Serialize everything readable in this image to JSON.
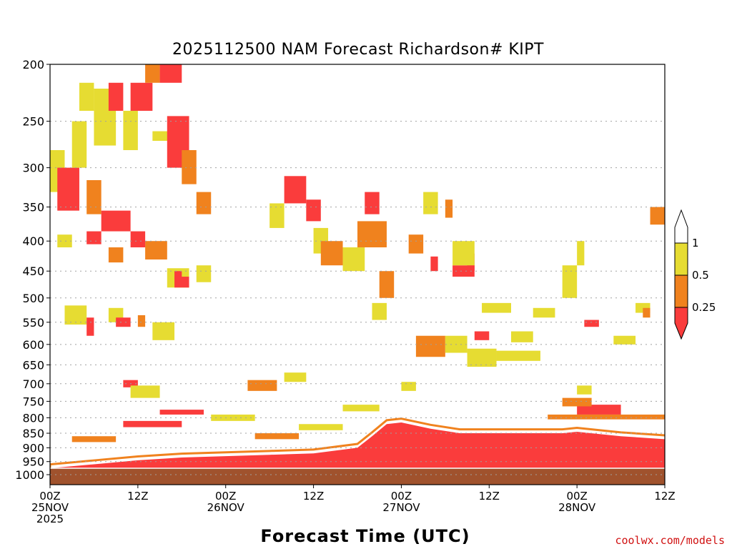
{
  "colors": {
    "ri_lt_025": "#fa3c3c",
    "ri_025_05": "#f0821e",
    "ri_05_1": "#e6dc32",
    "ri_gt_1": "#ffffff",
    "ground": "#a0522d",
    "grid": "#a0a0a0"
  },
  "credit": "coolwx.com/models",
  "chart_data": {
    "type": "heatmap",
    "title": "2025112500 NAM Forecast Richardson# KIPT",
    "xlabel": "Forecast Time (UTC)",
    "ylabel": "",
    "x_unit": "forecast hour",
    "xlim": [
      0,
      84
    ],
    "ylim": [
      1000,
      200
    ],
    "y_scale": "log",
    "grid": "dotted horizontal lines at every pressure tick",
    "y_ticks": [
      1000,
      950,
      900,
      850,
      800,
      750,
      700,
      650,
      600,
      550,
      500,
      450,
      400,
      350,
      300,
      250,
      200
    ],
    "x_ticks": [
      {
        "x": 0,
        "lines": [
          "00Z",
          "25NOV",
          "2025"
        ]
      },
      {
        "x": 12,
        "lines": [
          "12Z"
        ]
      },
      {
        "x": 24,
        "lines": [
          "00Z",
          "26NOV"
        ]
      },
      {
        "x": 36,
        "lines": [
          "12Z"
        ]
      },
      {
        "x": 48,
        "lines": [
          "00Z",
          "27NOV"
        ]
      },
      {
        "x": 60,
        "lines": [
          "12Z"
        ]
      },
      {
        "x": 72,
        "lines": [
          "00Z",
          "28NOV"
        ]
      },
      {
        "x": 84,
        "lines": [
          "12Z"
        ]
      }
    ],
    "colorbar": {
      "levels": [
        "0.25",
        "0.5",
        "1"
      ],
      "bins": [
        "< 0.25",
        "0.25 - 0.5",
        "0.5 - 1",
        "> 1"
      ]
    },
    "ground_level_hpa": 975,
    "boundary_layer_top_hpa": [
      {
        "x": 0,
        "p": 975
      },
      {
        "x": 6,
        "p": 960
      },
      {
        "x": 12,
        "p": 945
      },
      {
        "x": 18,
        "p": 935
      },
      {
        "x": 24,
        "p": 930
      },
      {
        "x": 30,
        "p": 925
      },
      {
        "x": 36,
        "p": 920
      },
      {
        "x": 42,
        "p": 900
      },
      {
        "x": 44,
        "p": 860
      },
      {
        "x": 46,
        "p": 820
      },
      {
        "x": 48,
        "p": 815
      },
      {
        "x": 52,
        "p": 835
      },
      {
        "x": 56,
        "p": 850
      },
      {
        "x": 60,
        "p": 850
      },
      {
        "x": 66,
        "p": 850
      },
      {
        "x": 70,
        "p": 850
      },
      {
        "x": 72,
        "p": 845
      },
      {
        "x": 78,
        "p": 860
      },
      {
        "x": 84,
        "p": 870
      }
    ],
    "patches": [
      {
        "x0": 0,
        "x1": 2,
        "p0": 330,
        "p1": 280,
        "ri": "0.5-1"
      },
      {
        "x0": 1,
        "x1": 4,
        "p0": 355,
        "p1": 300,
        "ri": "<0.25"
      },
      {
        "x0": 3,
        "x1": 5,
        "p0": 300,
        "p1": 250,
        "ri": "0.5-1"
      },
      {
        "x0": 4,
        "x1": 6,
        "p0": 240,
        "p1": 215,
        "ri": "0.5-1"
      },
      {
        "x0": 5,
        "x1": 7,
        "p0": 360,
        "p1": 315,
        "ri": "0.25-0.5"
      },
      {
        "x0": 6,
        "x1": 9,
        "p0": 275,
        "p1": 220,
        "ri": "0.5-1"
      },
      {
        "x0": 8,
        "x1": 10,
        "p0": 240,
        "p1": 215,
        "ri": "<0.25"
      },
      {
        "x0": 7,
        "x1": 11,
        "p0": 385,
        "p1": 355,
        "ri": "<0.25"
      },
      {
        "x0": 11,
        "x1": 14,
        "p0": 240,
        "p1": 215,
        "ri": "<0.25"
      },
      {
        "x0": 10,
        "x1": 12,
        "p0": 280,
        "p1": 240,
        "ri": "0.5-1"
      },
      {
        "x0": 13,
        "x1": 15,
        "p0": 215,
        "p1": 200,
        "ri": "0.25-0.5"
      },
      {
        "x0": 15,
        "x1": 18,
        "p0": 215,
        "p1": 200,
        "ri": "<0.25"
      },
      {
        "x0": 14,
        "x1": 18,
        "p0": 270,
        "p1": 260,
        "ri": "0.5-1"
      },
      {
        "x0": 16,
        "x1": 19,
        "p0": 300,
        "p1": 245,
        "ri": "<0.25"
      },
      {
        "x0": 18,
        "x1": 20,
        "p0": 320,
        "p1": 280,
        "ri": "0.25-0.5"
      },
      {
        "x0": 13,
        "x1": 16,
        "p0": 430,
        "p1": 400,
        "ri": "0.25-0.5"
      },
      {
        "x0": 11,
        "x1": 13,
        "p0": 410,
        "p1": 385,
        "ri": "<0.25"
      },
      {
        "x0": 8,
        "x1": 10,
        "p0": 435,
        "p1": 410,
        "ri": "0.25-0.5"
      },
      {
        "x0": 1,
        "x1": 3,
        "p0": 410,
        "p1": 390,
        "ri": "0.5-1"
      },
      {
        "x0": 5,
        "x1": 7,
        "p0": 405,
        "p1": 385,
        "ri": "<0.25"
      },
      {
        "x0": 16,
        "x1": 19,
        "p0": 480,
        "p1": 445,
        "ri": "0.5-1"
      },
      {
        "x0": 17,
        "x1": 18,
        "p0": 465,
        "p1": 450,
        "ri": "<0.25"
      },
      {
        "x0": 20,
        "x1": 22,
        "p0": 360,
        "p1": 330,
        "ri": "0.25-0.5"
      },
      {
        "x0": 2,
        "x1": 5,
        "p0": 555,
        "p1": 515,
        "ri": "0.5-1"
      },
      {
        "x0": 5,
        "x1": 6,
        "p0": 580,
        "p1": 540,
        "ri": "<0.25"
      },
      {
        "x0": 8,
        "x1": 10,
        "p0": 550,
        "p1": 520,
        "ri": "0.5-1"
      },
      {
        "x0": 14,
        "x1": 17,
        "p0": 590,
        "p1": 550,
        "ri": "0.5-1"
      },
      {
        "x0": 12,
        "x1": 13,
        "p0": 560,
        "p1": 535,
        "ri": "0.25-0.5"
      },
      {
        "x0": 9,
        "x1": 11,
        "p0": 560,
        "p1": 540,
        "ri": "<0.25"
      },
      {
        "x0": 17,
        "x1": 19,
        "p0": 480,
        "p1": 460,
        "ri": "<0.25"
      },
      {
        "x0": 20,
        "x1": 22,
        "p0": 470,
        "p1": 440,
        "ri": "0.5-1"
      },
      {
        "x0": 32,
        "x1": 35,
        "p0": 345,
        "p1": 310,
        "ri": "<0.25"
      },
      {
        "x0": 30,
        "x1": 32,
        "p0": 380,
        "p1": 345,
        "ri": "0.5-1"
      },
      {
        "x0": 35,
        "x1": 37,
        "p0": 370,
        "p1": 340,
        "ri": "<0.25"
      },
      {
        "x0": 36,
        "x1": 38,
        "p0": 420,
        "p1": 380,
        "ri": "0.5-1"
      },
      {
        "x0": 37,
        "x1": 40,
        "p0": 440,
        "p1": 400,
        "ri": "0.25-0.5"
      },
      {
        "x0": 43,
        "x1": 45,
        "p0": 360,
        "p1": 330,
        "ri": "<0.25"
      },
      {
        "x0": 42,
        "x1": 46,
        "p0": 410,
        "p1": 370,
        "ri": "0.25-0.5"
      },
      {
        "x0": 40,
        "x1": 43,
        "p0": 450,
        "p1": 410,
        "ri": "0.5-1"
      },
      {
        "x0": 45,
        "x1": 47,
        "p0": 500,
        "p1": 450,
        "ri": "0.25-0.5"
      },
      {
        "x0": 44,
        "x1": 46,
        "p0": 545,
        "p1": 510,
        "ri": "0.5-1"
      },
      {
        "x0": 49,
        "x1": 51,
        "p0": 420,
        "p1": 390,
        "ri": "0.25-0.5"
      },
      {
        "x0": 51,
        "x1": 53,
        "p0": 360,
        "p1": 330,
        "ri": "0.5-1"
      },
      {
        "x0": 54,
        "x1": 55,
        "p0": 365,
        "p1": 340,
        "ri": "0.25-0.5"
      },
      {
        "x0": 52,
        "x1": 53,
        "p0": 450,
        "p1": 425,
        "ri": "<0.25"
      },
      {
        "x0": 55,
        "x1": 58,
        "p0": 460,
        "p1": 440,
        "ri": "<0.25"
      },
      {
        "x0": 57,
        "x1": 58,
        "p0": 450,
        "p1": 420,
        "ri": "<0.25"
      },
      {
        "x0": 55,
        "x1": 58,
        "p0": 440,
        "p1": 400,
        "ri": "0.5-1"
      },
      {
        "x0": 50,
        "x1": 54,
        "p0": 630,
        "p1": 580,
        "ri": "0.25-0.5"
      },
      {
        "x0": 54,
        "x1": 57,
        "p0": 620,
        "p1": 580,
        "ri": "0.5-1"
      },
      {
        "x0": 57,
        "x1": 61,
        "p0": 655,
        "p1": 610,
        "ri": "0.5-1"
      },
      {
        "x0": 61,
        "x1": 67,
        "p0": 640,
        "p1": 615,
        "ri": "0.5-1"
      },
      {
        "x0": 63,
        "x1": 66,
        "p0": 595,
        "p1": 570,
        "ri": "0.5-1"
      },
      {
        "x0": 59,
        "x1": 63,
        "p0": 530,
        "p1": 510,
        "ri": "0.5-1"
      },
      {
        "x0": 66,
        "x1": 69,
        "p0": 540,
        "p1": 520,
        "ri": "0.5-1"
      },
      {
        "x0": 70,
        "x1": 72,
        "p0": 500,
        "p1": 440,
        "ri": "0.5-1"
      },
      {
        "x0": 72,
        "x1": 73,
        "p0": 440,
        "p1": 400,
        "ri": "0.5-1"
      },
      {
        "x0": 73,
        "x1": 75,
        "p0": 560,
        "p1": 545,
        "ri": "<0.25"
      },
      {
        "x0": 77,
        "x1": 80,
        "p0": 600,
        "p1": 580,
        "ri": "0.5-1"
      },
      {
        "x0": 80,
        "x1": 82,
        "p0": 530,
        "p1": 510,
        "ri": "0.5-1"
      },
      {
        "x0": 81,
        "x1": 82,
        "p0": 540,
        "p1": 520,
        "ri": "0.25-0.5"
      },
      {
        "x0": 82,
        "x1": 84,
        "p0": 375,
        "p1": 350,
        "ri": "0.25-0.5"
      },
      {
        "x0": 72,
        "x1": 78,
        "p0": 790,
        "p1": 760,
        "ri": "<0.25"
      },
      {
        "x0": 70,
        "x1": 74,
        "p0": 765,
        "p1": 740,
        "ri": "0.25-0.5"
      },
      {
        "x0": 72,
        "x1": 74,
        "p0": 730,
        "p1": 705,
        "ri": "0.5-1"
      },
      {
        "x0": 68,
        "x1": 84,
        "p0": 805,
        "p1": 790,
        "ri": "0.25-0.5"
      },
      {
        "x0": 3,
        "x1": 9,
        "p0": 880,
        "p1": 860,
        "ri": "0.25-0.5"
      },
      {
        "x0": 10,
        "x1": 18,
        "p0": 830,
        "p1": 810,
        "ri": "<0.25"
      },
      {
        "x0": 15,
        "x1": 21,
        "p0": 790,
        "p1": 775,
        "ri": "<0.25"
      },
      {
        "x0": 22,
        "x1": 28,
        "p0": 810,
        "p1": 790,
        "ri": "0.5-1"
      },
      {
        "x0": 28,
        "x1": 34,
        "p0": 870,
        "p1": 850,
        "ri": "0.25-0.5"
      },
      {
        "x0": 34,
        "x1": 40,
        "p0": 840,
        "p1": 820,
        "ri": "0.5-1"
      },
      {
        "x0": 40,
        "x1": 45,
        "p0": 780,
        "p1": 760,
        "ri": "0.5-1"
      },
      {
        "x0": 10,
        "x1": 12,
        "p0": 710,
        "p1": 690,
        "ri": "<0.25"
      },
      {
        "x0": 11,
        "x1": 15,
        "p0": 740,
        "p1": 705,
        "ri": "0.5-1"
      },
      {
        "x0": 27,
        "x1": 31,
        "p0": 720,
        "p1": 690,
        "ri": "0.25-0.5"
      },
      {
        "x0": 32,
        "x1": 35,
        "p0": 695,
        "p1": 670,
        "ri": "0.5-1"
      },
      {
        "x0": 48,
        "x1": 50,
        "p0": 720,
        "p1": 695,
        "ri": "0.5-1"
      },
      {
        "x0": 58,
        "x1": 60,
        "p0": 590,
        "p1": 570,
        "ri": "<0.25"
      }
    ]
  }
}
